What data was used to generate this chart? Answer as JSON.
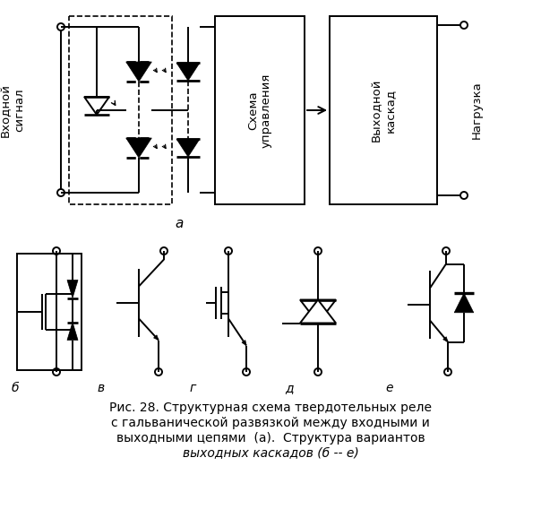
{
  "caption_line1": "Рис. 28. Структурная схема твердотельных реле",
  "caption_line2": "с гальванической развязкой между входными и",
  "caption_line3": "выходными цепями  (а).  Структура вариантов",
  "caption_line4": "выходных каскадов (б -- е)",
  "label_a": "а",
  "label_b": "б",
  "label_v": "в",
  "label_g": "г",
  "label_d": "д",
  "label_e": "е",
  "label_input": "Входной\nсигнал",
  "label_schema": "Схема\nуправления",
  "label_output_cascade": "Выходной\nкаскад",
  "label_load": "Нагрузка",
  "bg_color": "#ffffff",
  "line_color": "#000000",
  "caption_fontsize": 10.0,
  "label_fontsize": 10.0
}
